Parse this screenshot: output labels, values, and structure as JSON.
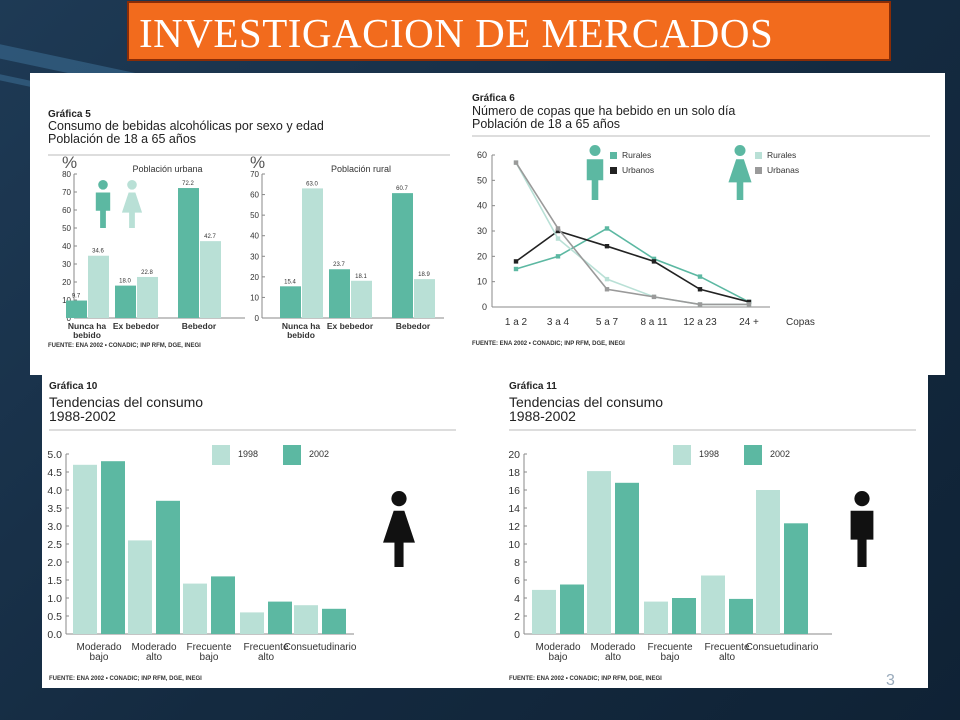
{
  "slide": {
    "title": "INVESTIGACION DE MERCADOS",
    "page_number": "3"
  },
  "colors": {
    "teal": "#5cb8a2",
    "light": "#b9e0d6",
    "dark": "#222222",
    "gray": "#9a9a9a",
    "accent": "#f26b1d"
  },
  "chart_data": [
    {
      "id": "g5",
      "type": "bar",
      "heading": "Gráfica 5",
      "title_lines": [
        "Consumo de bebidas alcohólicas por sexo y edad",
        "Población de 18 a 65 años"
      ],
      "ylabel": "%",
      "source": "FUENTE: ENA 2002 • CONADIC; INP RFM, DGE, INEGI",
      "panels": [
        {
          "subtitle": "Población urbana",
          "ylim": [
            0,
            80
          ],
          "yticks": [
            "0",
            "10",
            "20",
            "30",
            "40",
            "50",
            "60",
            "70",
            "80"
          ],
          "categories": [
            "Nunca ha bebido",
            "Ex bebedor",
            "Bebedor"
          ],
          "series": [
            {
              "values": [
                9.7,
                18.0,
                72.2
              ]
            },
            {
              "values": [
                34.6,
                22.8,
                42.7
              ]
            }
          ],
          "labels": [
            [
              "9.7",
              "18.0",
              "72.2"
            ],
            [
              "34.6",
              "22.8",
              "42.7"
            ]
          ]
        },
        {
          "subtitle": "Población rural",
          "ylim": [
            0,
            70
          ],
          "yticks": [
            "0",
            "10",
            "20",
            "30",
            "40",
            "50",
            "60",
            "70"
          ],
          "categories": [
            "Nunca ha bebido",
            "Ex bebedor",
            "Bebedor"
          ],
          "series": [
            {
              "values": [
                15.4,
                23.7,
                60.7
              ]
            },
            {
              "values": [
                63.0,
                18.1,
                18.9
              ]
            }
          ],
          "labels": [
            [
              "15.4",
              "23.7",
              "60.7"
            ],
            [
              "63.0",
              "18.1",
              "18.9"
            ]
          ]
        }
      ],
      "category_labels": [
        [
          "Nunca ha",
          "bebido"
        ],
        [
          "Ex bebedor"
        ],
        [
          "Bebedor"
        ]
      ]
    },
    {
      "id": "g6",
      "type": "line",
      "heading": "Gráfica 6",
      "title_lines": [
        "Número de copas que ha bebido en un solo día",
        "Población de 18 a 65 años"
      ],
      "categories": [
        "1 a 2",
        "3 a 4",
        "5 a 7",
        "8 a 11",
        "12 a 23",
        "24 +"
      ],
      "xlabel": "Copas",
      "ylim": [
        0,
        60
      ],
      "yticks": [
        "0",
        "10",
        "20",
        "30",
        "40",
        "50",
        "60"
      ],
      "series": [
        {
          "name": "Rurales",
          "group": "men",
          "values": [
            15,
            20,
            31,
            19,
            12,
            2
          ]
        },
        {
          "name": "Urbanos",
          "group": "men",
          "values": [
            18,
            30,
            24,
            18,
            7,
            2
          ]
        },
        {
          "name": "Rurales",
          "group": "women",
          "values": [
            57,
            27,
            11,
            4,
            1,
            1
          ]
        },
        {
          "name": "Urbanas",
          "group": "women",
          "values": [
            57,
            31,
            7,
            4,
            1,
            1
          ]
        }
      ],
      "source": "FUENTE: ENA 2002 • CONADIC; INP RFM, DGE, INEGI"
    },
    {
      "id": "g10",
      "type": "bar",
      "heading": "Gráfica 10",
      "title_lines": [
        "Tendencias del consumo",
        "1988-2002"
      ],
      "legend": [
        "1998",
        "2002"
      ],
      "ylim": [
        0,
        5
      ],
      "yticks": [
        "0.0",
        "0.5",
        "1.0",
        "1.5",
        "2.0",
        "2.5",
        "3.0",
        "3.5",
        "4.0",
        "4.5",
        "5.0"
      ],
      "category_labels": [
        [
          "Moderado",
          "bajo"
        ],
        [
          "Moderado",
          "alto"
        ],
        [
          "Frecuente",
          "bajo"
        ],
        [
          "Frecuente",
          "alto"
        ],
        [
          "Consuetudinario"
        ]
      ],
      "series": [
        {
          "name": "1998",
          "values": [
            4.7,
            2.6,
            1.4,
            0.6,
            0.8
          ]
        },
        {
          "name": "2002",
          "values": [
            4.8,
            3.7,
            1.6,
            0.9,
            0.7
          ]
        }
      ],
      "source": "FUENTE: ENA 2002 • CONADIC; INP RFM, DGE, INEGI"
    },
    {
      "id": "g11",
      "type": "bar",
      "heading": "Gráfica 11",
      "title_lines": [
        "Tendencias del consumo",
        "1988-2002"
      ],
      "legend": [
        "1998",
        "2002"
      ],
      "ylim": [
        0,
        20
      ],
      "yticks": [
        "0",
        "2",
        "4",
        "6",
        "8",
        "10",
        "12",
        "14",
        "16",
        "18",
        "20"
      ],
      "category_labels": [
        [
          "Moderado",
          "bajo"
        ],
        [
          "Moderado",
          "alto"
        ],
        [
          "Frecuente",
          "bajo"
        ],
        [
          "Frecuente",
          "alto"
        ],
        [
          "Consuetudinario"
        ]
      ],
      "series": [
        {
          "name": "1998",
          "values": [
            4.9,
            18.1,
            3.6,
            6.5,
            16.0
          ]
        },
        {
          "name": "2002",
          "values": [
            5.5,
            16.8,
            4.0,
            3.9,
            12.3
          ]
        }
      ],
      "source": "FUENTE: ENA 2002 • CONADIC; INP RFM, DGE, INEGI"
    }
  ]
}
